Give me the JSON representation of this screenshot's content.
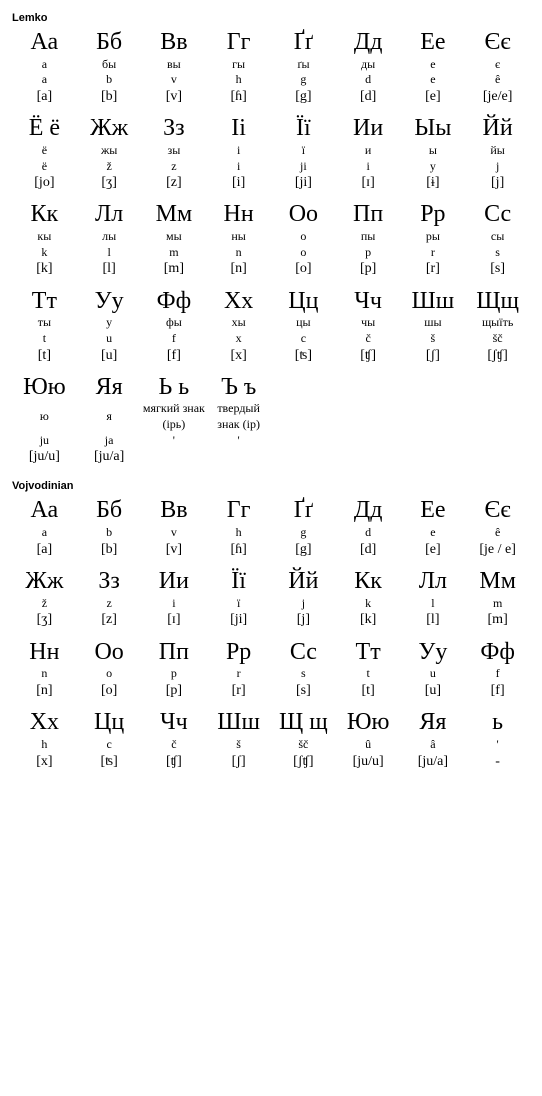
{
  "sections": [
    {
      "title": "Lemko",
      "rows_per_cell": [
        "letter",
        "cyr_name",
        "latin",
        "ipa"
      ],
      "grid": [
        [
          {
            "letter": "Аа",
            "cyr_name": "а",
            "latin": "a",
            "ipa": "[a]"
          },
          {
            "letter": "Бб",
            "cyr_name": "бы",
            "latin": "b",
            "ipa": "[b]"
          },
          {
            "letter": "Вв",
            "cyr_name": "вы",
            "latin": "v",
            "ipa": "[v]"
          },
          {
            "letter": "Гг",
            "cyr_name": "гы",
            "latin": "h",
            "ipa": "[ɦ]"
          },
          {
            "letter": "Ґґ",
            "cyr_name": "ґы",
            "latin": "g",
            "ipa": "[g]"
          },
          {
            "letter": "Дд",
            "cyr_name": "ды",
            "latin": "d",
            "ipa": "[d]"
          },
          {
            "letter": "Ее",
            "cyr_name": "е",
            "latin": "e",
            "ipa": "[e]"
          },
          {
            "letter": "Єє",
            "cyr_name": "є",
            "latin": "ê",
            "ipa": "[je/e]"
          }
        ],
        [
          {
            "letter": "Ё ё",
            "cyr_name": "ё",
            "latin": "ë",
            "ipa": "[jo]"
          },
          {
            "letter": "Жж",
            "cyr_name": "жы",
            "latin": "ž",
            "ipa": "[ʒ]"
          },
          {
            "letter": "Зз",
            "cyr_name": "зы",
            "latin": "z",
            "ipa": "[z]"
          },
          {
            "letter": "Іі",
            "cyr_name": "і",
            "latin": "i",
            "ipa": "[i]"
          },
          {
            "letter": "Її",
            "cyr_name": "ї",
            "latin": "ji",
            "ipa": "[ji]"
          },
          {
            "letter": "Ии",
            "cyr_name": "и",
            "latin": "i",
            "ipa": "[ɪ]"
          },
          {
            "letter": "Ыы",
            "cyr_name": "ы",
            "latin": "y",
            "ipa": "[ɨ]"
          },
          {
            "letter": "Йй",
            "cyr_name": "йы",
            "latin": "j",
            "ipa": "[j]"
          }
        ],
        [
          {
            "letter": "Кк",
            "cyr_name": "кы",
            "latin": "k",
            "ipa": "[k]"
          },
          {
            "letter": "Лл",
            "cyr_name": "лы",
            "latin": "l",
            "ipa": "[l]"
          },
          {
            "letter": "Мм",
            "cyr_name": "мы",
            "latin": "m",
            "ipa": "[m]"
          },
          {
            "letter": "Нн",
            "cyr_name": "ны",
            "latin": "n",
            "ipa": "[n]"
          },
          {
            "letter": "Оо",
            "cyr_name": "о",
            "latin": "o",
            "ipa": "[o]"
          },
          {
            "letter": "Пп",
            "cyr_name": "пы",
            "latin": "p",
            "ipa": "[p]"
          },
          {
            "letter": "Рр",
            "cyr_name": "ры",
            "latin": "r",
            "ipa": "[r]"
          },
          {
            "letter": "Сс",
            "cyr_name": "сы",
            "latin": "s",
            "ipa": "[s]"
          }
        ],
        [
          {
            "letter": "Тт",
            "cyr_name": "ты",
            "latin": "t",
            "ipa": "[t]"
          },
          {
            "letter": "Уу",
            "cyr_name": "у",
            "latin": "u",
            "ipa": "[u]"
          },
          {
            "letter": "Фф",
            "cyr_name": "фы",
            "latin": "f",
            "ipa": "[f]"
          },
          {
            "letter": "Хх",
            "cyr_name": "хы",
            "latin": "x",
            "ipa": "[x]"
          },
          {
            "letter": "Цц",
            "cyr_name": "цы",
            "latin": "c",
            "ipa": "[ʦ]"
          },
          {
            "letter": "Чч",
            "cyr_name": "чы",
            "latin": "č",
            "ipa": "[ʧ]"
          },
          {
            "letter": "Шш",
            "cyr_name": "шы",
            "latin": "š",
            "ipa": "[ʃ]"
          },
          {
            "letter": "Щщ",
            "cyr_name": "щыїть",
            "latin": "šč",
            "ipa": "[ʃʧ]"
          }
        ],
        [
          {
            "letter": "Юю",
            "cyr_name": "ю",
            "latin": "ju",
            "ipa": "[ju/u]"
          },
          {
            "letter": "Яя",
            "cyr_name": "я",
            "latin": "ja",
            "ipa": "[ju/a]"
          },
          {
            "letter": "Ь ь",
            "cyr_name": "мягкий знак (ірь)",
            "latin": "'",
            "ipa": ""
          },
          {
            "letter": "Ъ ъ",
            "cyr_name": "твердый знак (ір)",
            "latin": "'",
            "ipa": ""
          }
        ]
      ]
    },
    {
      "title": "Vojvodinian",
      "rows_per_cell": [
        "letter",
        "latin",
        "ipa"
      ],
      "grid": [
        [
          {
            "letter": "Аа",
            "latin": "a",
            "ipa": "[a]"
          },
          {
            "letter": "Бб",
            "latin": "b",
            "ipa": "[b]"
          },
          {
            "letter": "Вв",
            "latin": "v",
            "ipa": "[v]"
          },
          {
            "letter": "Гг",
            "latin": "h",
            "ipa": "[ɦ]"
          },
          {
            "letter": "Ґґ",
            "latin": "g",
            "ipa": "[g]"
          },
          {
            "letter": "Дд",
            "latin": "d",
            "ipa": "[d]"
          },
          {
            "letter": "Ее",
            "latin": "e",
            "ipa": "[e]"
          },
          {
            "letter": "Єє",
            "latin": "ê",
            "ipa": "[je / e]"
          }
        ],
        [
          {
            "letter": "Жж",
            "latin": "ž",
            "ipa": "[ʒ]"
          },
          {
            "letter": "Зз",
            "latin": "z",
            "ipa": "[z]"
          },
          {
            "letter": "Ии",
            "latin": "i",
            "ipa": "[ɪ]"
          },
          {
            "letter": "Її",
            "latin": "ï",
            "ipa": "[ji]"
          },
          {
            "letter": "Йй",
            "latin": "j",
            "ipa": "[j]"
          },
          {
            "letter": "Кк",
            "latin": "k",
            "ipa": "[k]"
          },
          {
            "letter": "Лл",
            "latin": "l",
            "ipa": "[l]"
          },
          {
            "letter": "Мм",
            "latin": "m",
            "ipa": "[m]"
          }
        ],
        [
          {
            "letter": "Нн",
            "latin": "n",
            "ipa": "[n]"
          },
          {
            "letter": "Оо",
            "latin": "o",
            "ipa": "[o]"
          },
          {
            "letter": "Пп",
            "latin": "p",
            "ipa": "[p]"
          },
          {
            "letter": "Рр",
            "latin": "r",
            "ipa": "[r]"
          },
          {
            "letter": "Сс",
            "latin": "s",
            "ipa": "[s]"
          },
          {
            "letter": "Тт",
            "latin": "t",
            "ipa": "[t]"
          },
          {
            "letter": "Уу",
            "latin": "u",
            "ipa": "[u]"
          },
          {
            "letter": "Фф",
            "latin": "f",
            "ipa": "[f]"
          }
        ],
        [
          {
            "letter": "Хх",
            "latin": "h",
            "ipa": "[x]"
          },
          {
            "letter": "Цц",
            "latin": "c",
            "ipa": "[ʦ]"
          },
          {
            "letter": "Чч",
            "latin": "č",
            "ipa": "[ʧ]"
          },
          {
            "letter": "Шш",
            "latin": "š",
            "ipa": "[ʃ]"
          },
          {
            "letter": "Щ щ",
            "latin": "šč",
            "ipa": "[ʃʧ]"
          },
          {
            "letter": "Юю",
            "latin": "û",
            "ipa": "[ju/u]"
          },
          {
            "letter": "Яя",
            "latin": "â",
            "ipa": "[ju/a]"
          },
          {
            "letter": "ь",
            "latin": "'",
            "ipa": "-"
          }
        ]
      ]
    }
  ],
  "style": {
    "columns": 8,
    "background": "#ffffff",
    "text_color": "#000000",
    "letter_fontsize": 24,
    "sub_fontsize": 12,
    "ipa_fontsize": 14,
    "title_fontsize": 11
  }
}
